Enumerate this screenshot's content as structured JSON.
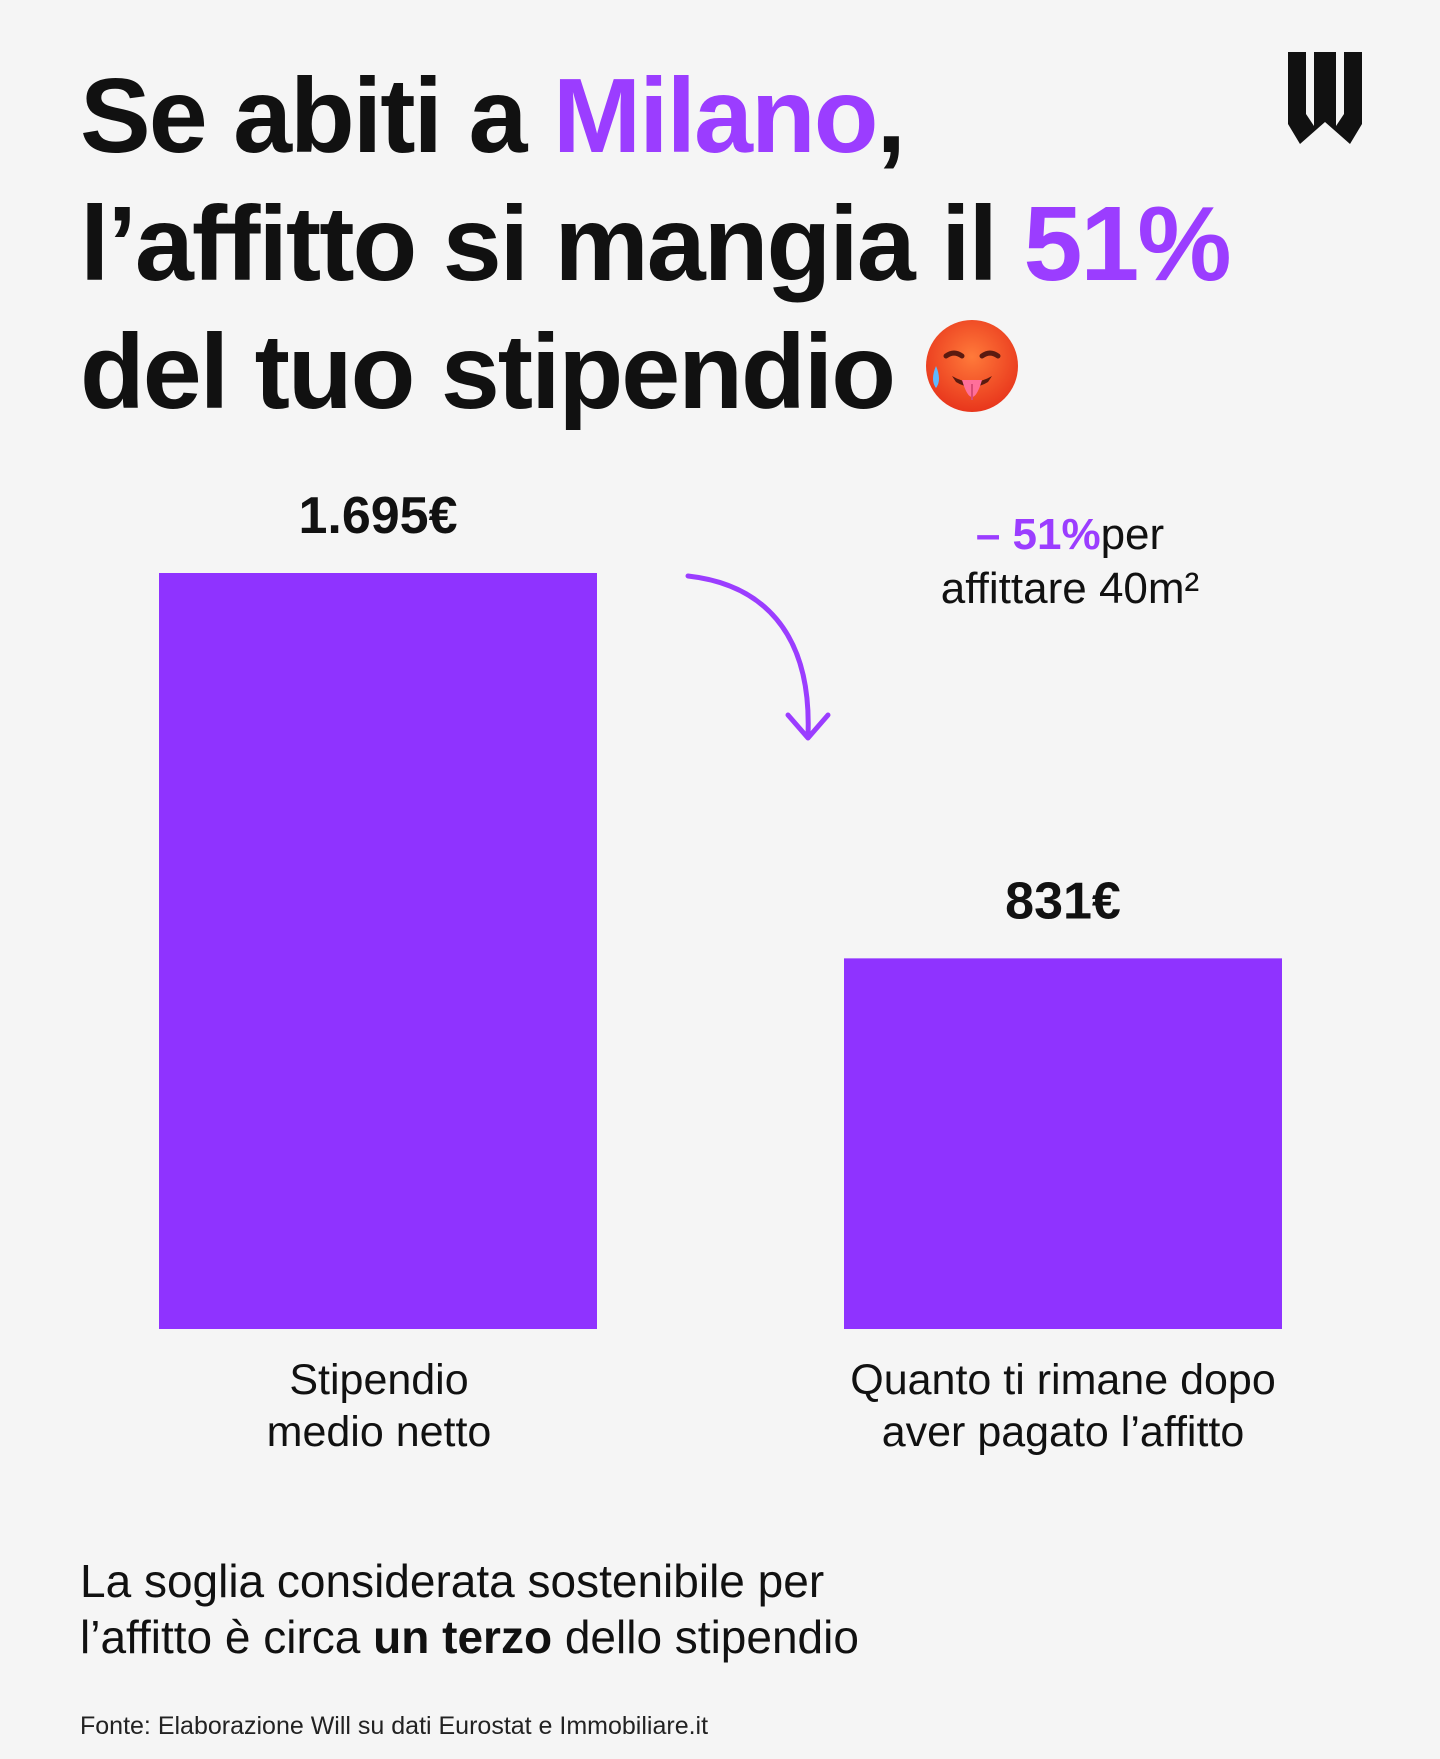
{
  "header": {
    "title_line1_a": "Se abiti a ",
    "title_line1_city": "Milano",
    "title_line1_b": ",",
    "title_line2_a": "l’affitto si mangia il ",
    "title_line2_pct": "51%",
    "title_line3": "del tuo stipendio"
  },
  "icons": {
    "emoji": "hot-face-emoji",
    "logo": "will-logo"
  },
  "colors": {
    "accent": "#9b3dff",
    "bar": "#8f33ff",
    "text": "#111111",
    "background": "#f5f5f5"
  },
  "chart_data": {
    "type": "bar",
    "categories": [
      "Stipendio medio netto",
      "Quanto ti rimane dopo aver pagato l’affitto"
    ],
    "category_lines": [
      [
        "Stipendio",
        "medio netto"
      ],
      [
        "Quanto ti rimane dopo",
        "aver pagato l’affitto"
      ]
    ],
    "values": [
      1695,
      831
    ],
    "value_labels": [
      "1.695€",
      "831€"
    ],
    "ylim": [
      0,
      1695
    ],
    "grid": false,
    "annotation": {
      "pct": "– 51%",
      "text_a": "per",
      "text_b": "affittare 40m²"
    }
  },
  "footnote": {
    "line1": "La soglia considerata sostenibile per",
    "line2_a": "l’affitto è circa ",
    "line2_bold": "un terzo",
    "line2_b": " dello stipendio"
  },
  "source": "Fonte: Elaborazione Will su dati Eurostat e Immobiliare.it"
}
